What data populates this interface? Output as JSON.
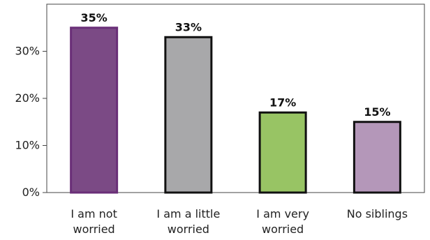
{
  "chart_data": {
    "type": "bar",
    "title": "",
    "xlabel": "",
    "ylabel": "",
    "categories": [
      [
        "I am not",
        "worried"
      ],
      [
        "I am a little",
        "worried"
      ],
      [
        "I am very",
        "worried"
      ],
      [
        "No siblings"
      ]
    ],
    "values": [
      35,
      33,
      17,
      15
    ],
    "data_labels": [
      "35%",
      "33%",
      "17%",
      "15%"
    ],
    "ylim": [
      0,
      40
    ],
    "yticks": [
      0,
      10,
      20,
      30
    ],
    "ytick_labels": [
      "0%",
      "10%",
      "20%",
      "30%"
    ],
    "grid": false,
    "legend": "none",
    "bar_colors": [
      "#7b4a85",
      "#a8a8aa",
      "#98c464",
      "#b497b9"
    ],
    "bar_outline_colors": [
      "#6a2f78",
      "#111111",
      "#111111",
      "#111111"
    ]
  }
}
